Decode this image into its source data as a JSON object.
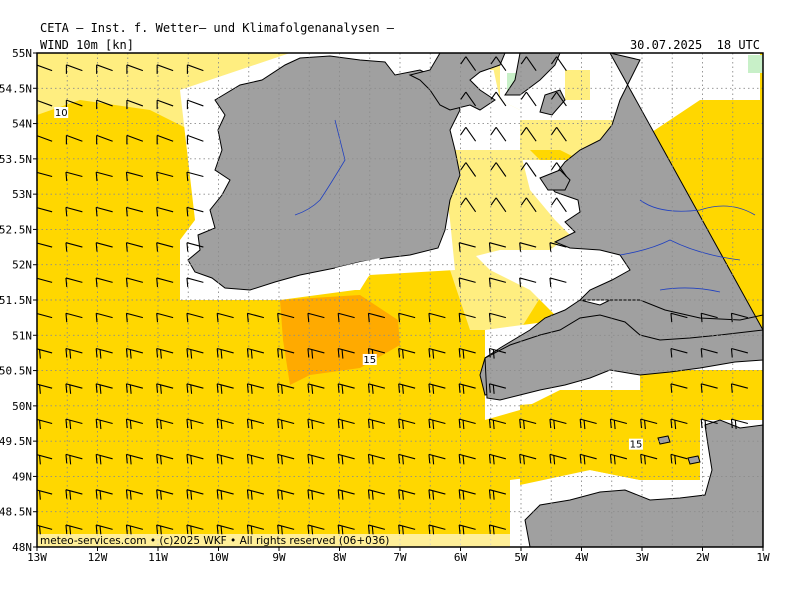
{
  "header": {
    "title": "CETA – Inst. f. Wetter– und Klimafolgenanalysen –",
    "product": "WIND 10m [kn]",
    "valid_time": "30.07.2025  18 UTC"
  },
  "footer": {
    "copyright": "meteo-services.com  •  (c)2025 WKF  •  All rights reserved  (06+036)"
  },
  "axes": {
    "lat_labels": [
      "55N",
      "54.5N",
      "54N",
      "53.5N",
      "53N",
      "52.5N",
      "52N",
      "51.5N",
      "51N",
      "50.5N",
      "50N",
      "49.5N",
      "49N",
      "48.5N",
      "48N"
    ],
    "lon_labels": [
      "13W",
      "12W",
      "11W",
      "10W",
      "9W",
      "8W",
      "7W",
      "6W",
      "5W",
      "4W",
      "3W",
      "2W",
      "1W"
    ],
    "lat_range": [
      48,
      55
    ],
    "lon_range": [
      -13,
      -1
    ]
  },
  "isotach_labels": [
    {
      "text": "10",
      "lon": -12.6,
      "lat": 54.15
    },
    {
      "text": "15",
      "lon": -7.5,
      "lat": 50.65
    },
    {
      "text": "15",
      "lon": -3.1,
      "lat": 49.45
    }
  ],
  "colors": {
    "ocean_light": "#FFEE80",
    "ocean_mid": "#FFD700",
    "ocean_strong": "#FFAA00",
    "land": "#A0A0A0",
    "grid": "#8c8c8c",
    "river": "#2040C0"
  },
  "icons": [
    "wind-barb-icon"
  ]
}
